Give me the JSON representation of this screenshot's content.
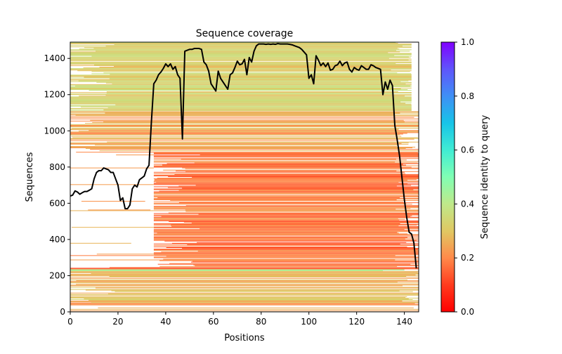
{
  "chart_data": {
    "type": "heatmap",
    "title": "Sequence coverage",
    "xlabel": "Positions",
    "ylabel": "Sequences",
    "xlim": [
      0,
      146
    ],
    "ylim": [
      0,
      1490
    ],
    "xticks": [
      0,
      20,
      40,
      60,
      80,
      100,
      120,
      140
    ],
    "yticks": [
      0,
      200,
      400,
      600,
      800,
      1000,
      1200,
      1400
    ],
    "grid": false,
    "colorbar": {
      "label": "Sequence identity to query",
      "range": [
        0,
        1
      ],
      "ticks": [
        "0.0",
        "0.2",
        "0.4",
        "0.6",
        "0.8",
        "1.0"
      ],
      "colormap": "rainbow_r"
    },
    "row_bands": [
      {
        "from": 0,
        "to": 50,
        "start_pos": 0,
        "end_pos": 146,
        "identity": 0.22,
        "fill": 0.55
      },
      {
        "from": 50,
        "to": 225,
        "start_pos": 0,
        "end_pos": 146,
        "identity": 0.28,
        "fill": 0.85
      },
      {
        "from": 225,
        "to": 235,
        "start_pos": 0,
        "end_pos": 140,
        "identity": 0.4,
        "fill": 1.0
      },
      {
        "from": 235,
        "to": 245,
        "start_pos": 0,
        "end_pos": 146,
        "identity": 0.15,
        "fill": 0.6
      },
      {
        "from": 245,
        "to": 880,
        "start_pos": 35,
        "end_pos": 146,
        "identity": 0.18,
        "fill": 0.9
      },
      {
        "from": 245,
        "to": 880,
        "start_pos": 0,
        "end_pos": 35,
        "identity": 0.22,
        "fill": 0.08
      },
      {
        "from": 880,
        "to": 1110,
        "start_pos": 0,
        "end_pos": 146,
        "identity": 0.25,
        "fill": 0.75
      },
      {
        "from": 1110,
        "to": 1490,
        "start_pos": 0,
        "end_pos": 143,
        "identity": 0.33,
        "fill": 0.95
      }
    ],
    "series": [
      {
        "name": "coverage",
        "color": "#000000",
        "x": [
          0,
          1,
          2,
          3,
          4,
          5,
          6,
          7,
          8,
          9,
          10,
          11,
          12,
          13,
          14,
          15,
          16,
          17,
          18,
          19,
          20,
          21,
          22,
          23,
          24,
          25,
          26,
          27,
          28,
          29,
          30,
          31,
          32,
          33,
          34,
          35,
          36,
          37,
          38,
          39,
          40,
          41,
          42,
          43,
          44,
          45,
          46,
          47,
          48,
          49,
          50,
          51,
          52,
          53,
          54,
          55,
          56,
          57,
          58,
          59,
          60,
          61,
          62,
          63,
          64,
          65,
          66,
          67,
          68,
          69,
          70,
          71,
          72,
          73,
          74,
          75,
          76,
          77,
          78,
          79,
          80,
          81,
          82,
          83,
          84,
          85,
          86,
          87,
          88,
          89,
          90,
          91,
          92,
          93,
          94,
          95,
          96,
          97,
          98,
          99,
          100,
          101,
          102,
          103,
          104,
          105,
          106,
          107,
          108,
          109,
          110,
          111,
          112,
          113,
          114,
          115,
          116,
          117,
          118,
          119,
          120,
          121,
          122,
          123,
          124,
          125,
          126,
          127,
          128,
          129,
          130,
          131,
          132,
          133,
          134,
          135,
          136,
          137,
          138,
          139,
          140,
          141,
          142,
          143,
          144,
          145
        ],
        "y": [
          640,
          645,
          668,
          662,
          650,
          658,
          665,
          665,
          672,
          680,
          735,
          770,
          780,
          780,
          795,
          790,
          785,
          770,
          770,
          735,
          700,
          615,
          630,
          570,
          570,
          590,
          680,
          700,
          690,
          730,
          740,
          750,
          790,
          810,
          1050,
          1260,
          1280,
          1310,
          1325,
          1345,
          1370,
          1355,
          1370,
          1340,
          1355,
          1310,
          1290,
          955,
          1440,
          1445,
          1450,
          1450,
          1455,
          1455,
          1455,
          1450,
          1380,
          1365,
          1330,
          1260,
          1240,
          1220,
          1330,
          1290,
          1270,
          1250,
          1230,
          1310,
          1320,
          1350,
          1385,
          1365,
          1370,
          1395,
          1310,
          1405,
          1380,
          1440,
          1470,
          1480,
          1480,
          1480,
          1478,
          1480,
          1478,
          1480,
          1478,
          1482,
          1480,
          1480,
          1480,
          1480,
          1478,
          1475,
          1470,
          1465,
          1460,
          1450,
          1435,
          1420,
          1290,
          1310,
          1260,
          1415,
          1390,
          1360,
          1375,
          1355,
          1375,
          1335,
          1340,
          1360,
          1365,
          1385,
          1360,
          1375,
          1380,
          1340,
          1325,
          1350,
          1340,
          1335,
          1360,
          1350,
          1340,
          1340,
          1365,
          1360,
          1350,
          1345,
          1340,
          1200,
          1270,
          1230,
          1280,
          1250,
          1030,
          950,
          860,
          740,
          620,
          520,
          440,
          430,
          380,
          240
        ]
      }
    ]
  }
}
